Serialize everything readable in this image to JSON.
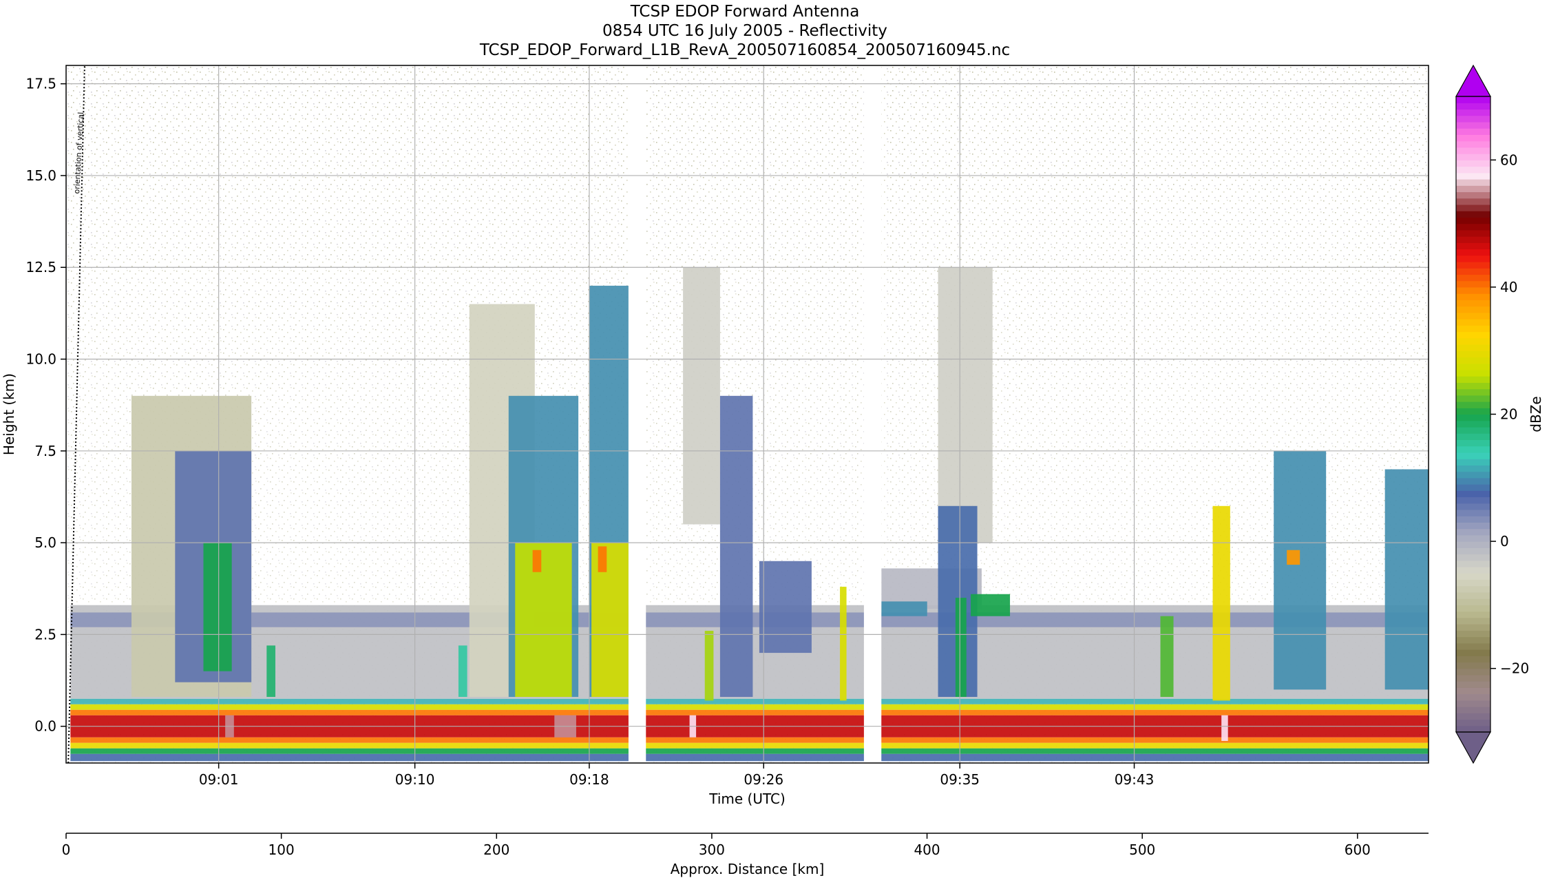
{
  "chart_data": {
    "type": "heatmap",
    "title_lines": [
      "TCSP EDOP Forward Antenna",
      "0854 UTC 16 July 2005 - Reflectivity",
      "TCSP_EDOP_Forward_L1B_RevA_200507160854_200507160945.nc"
    ],
    "ylabel": "Height (km)",
    "xlabel": "Time (UTC)",
    "x2label": "Approx. Distance [km]",
    "ylim": [
      -1.0,
      18.0
    ],
    "yticks": [
      0.0,
      2.5,
      5.0,
      7.5,
      10.0,
      12.5,
      15.0,
      17.5
    ],
    "ytick_labels": [
      "0.0",
      "2.5",
      "5.0",
      "7.5",
      "10.0",
      "12.5",
      "15.0",
      "17.5"
    ],
    "time_range_min": [
      0,
      62.5
    ],
    "time_ticks_min": [
      7,
      16,
      24,
      32,
      41,
      49
    ],
    "time_tick_labels": [
      "09:01",
      "09:10",
      "09:18",
      "09:26",
      "09:35",
      "09:43"
    ],
    "distance_range_km": [
      0,
      633
    ],
    "distance_ticks": [
      0,
      100,
      200,
      300,
      400,
      500,
      600
    ],
    "distance_tick_labels": [
      "0",
      "100",
      "200",
      "300",
      "400",
      "500",
      "600"
    ],
    "grid": true,
    "data_gaps_min": [
      [
        25.8,
        26.6
      ],
      [
        36.6,
        37.4
      ]
    ],
    "annotation": "orientation of vertical",
    "colorbar": {
      "label": "dBZe",
      "range": [
        -30,
        70
      ],
      "ticks": [
        -20,
        0,
        20,
        40,
        60
      ],
      "tick_labels": [
        "−20",
        "0",
        "20",
        "40",
        "60"
      ],
      "extend": "both",
      "colors": [
        "#6e5f88",
        "#a08a8c",
        "#837a4c",
        "#b9b98f",
        "#d7d7c8",
        "#a5a8c0",
        "#4a63aa",
        "#3ad1b9",
        "#17a44c",
        "#c8e000",
        "#ffd500",
        "#ff8f00",
        "#ee1010",
        "#720000",
        "#fce7f3",
        "#ff7ce0",
        "#b000f0"
      ]
    },
    "cells": [
      {
        "t0": 0.2,
        "t1": 62.5,
        "h0": -0.95,
        "h1": -0.75,
        "dbz": 8
      },
      {
        "t0": 0.2,
        "t1": 62.5,
        "h0": -0.75,
        "h1": -0.6,
        "dbz": 20
      },
      {
        "t0": 0.2,
        "t1": 62.5,
        "h0": -0.6,
        "h1": -0.45,
        "dbz": 30
      },
      {
        "t0": 0.2,
        "t1": 62.5,
        "h0": -0.45,
        "h1": -0.3,
        "dbz": 40
      },
      {
        "t0": 0.2,
        "t1": 62.5,
        "h0": -0.3,
        "h1": 0.3,
        "dbz": 47
      },
      {
        "t0": 0.2,
        "t1": 62.5,
        "h0": 0.3,
        "h1": 0.45,
        "dbz": 40
      },
      {
        "t0": 0.2,
        "t1": 62.5,
        "h0": 0.45,
        "h1": 0.6,
        "dbz": 28
      },
      {
        "t0": 0.2,
        "t1": 62.5,
        "h0": 0.6,
        "h1": 0.75,
        "dbz": 12
      },
      {
        "t0": 0.2,
        "t1": 62.5,
        "h0": 0.75,
        "h1": 3.3,
        "dbz": -2
      },
      {
        "t0": 0.2,
        "t1": 62.5,
        "h0": 2.7,
        "h1": 3.1,
        "dbz": 3
      },
      {
        "t0": 3.0,
        "t1": 8.5,
        "h0": 0.8,
        "h1": 9.0,
        "dbz": -8
      },
      {
        "t0": 5.0,
        "t1": 8.5,
        "h0": 1.2,
        "h1": 7.5,
        "dbz": 6
      },
      {
        "t0": 6.3,
        "t1": 7.6,
        "h0": 1.5,
        "h1": 5.0,
        "dbz": 20
      },
      {
        "t0": 18.5,
        "t1": 21.5,
        "h0": 0.8,
        "h1": 11.5,
        "dbz": -6
      },
      {
        "t0": 20.3,
        "t1": 23.5,
        "h0": 0.8,
        "h1": 9.0,
        "dbz": 10
      },
      {
        "t0": 20.6,
        "t1": 23.2,
        "h0": 0.8,
        "h1": 5.0,
        "dbz": 26
      },
      {
        "t0": 21.4,
        "t1": 21.8,
        "h0": 4.2,
        "h1": 4.8,
        "dbz": 40
      },
      {
        "t0": 24.0,
        "t1": 25.8,
        "h0": 0.8,
        "h1": 12.0,
        "dbz": 10
      },
      {
        "t0": 24.1,
        "t1": 25.8,
        "h0": 0.8,
        "h1": 5.0,
        "dbz": 28
      },
      {
        "t0": 24.4,
        "t1": 24.8,
        "h0": 4.2,
        "h1": 4.9,
        "dbz": 40
      },
      {
        "t0": 28.3,
        "t1": 30.0,
        "h0": 5.5,
        "h1": 12.5,
        "dbz": -4
      },
      {
        "t0": 30.0,
        "t1": 31.5,
        "h0": 0.8,
        "h1": 9.0,
        "dbz": 6
      },
      {
        "t0": 31.8,
        "t1": 34.2,
        "h0": 2.0,
        "h1": 4.5,
        "dbz": 6
      },
      {
        "t0": 40.0,
        "t1": 42.5,
        "h0": 5.0,
        "h1": 12.5,
        "dbz": -4
      },
      {
        "t0": 37.4,
        "t1": 42.0,
        "h0": 3.2,
        "h1": 4.3,
        "dbz": -1
      },
      {
        "t0": 37.4,
        "t1": 39.5,
        "h0": 3.0,
        "h1": 3.4,
        "dbz": 10
      },
      {
        "t0": 40.0,
        "t1": 41.8,
        "h0": 0.8,
        "h1": 6.0,
        "dbz": 8
      },
      {
        "t0": 40.8,
        "t1": 41.3,
        "h0": 0.8,
        "h1": 3.5,
        "dbz": 20
      },
      {
        "t0": 41.5,
        "t1": 43.3,
        "h0": 3.0,
        "h1": 3.6,
        "dbz": 20
      },
      {
        "t0": 52.6,
        "t1": 53.4,
        "h0": 0.7,
        "h1": 6.0,
        "dbz": 30
      },
      {
        "t0": 55.4,
        "t1": 57.8,
        "h0": 1.0,
        "h1": 7.5,
        "dbz": 10
      },
      {
        "t0": 56.0,
        "t1": 56.6,
        "h0": 4.4,
        "h1": 4.8,
        "dbz": 38
      },
      {
        "t0": 60.5,
        "t1": 62.5,
        "h0": 1.0,
        "h1": 7.0,
        "dbz": 10
      },
      {
        "t0": 9.2,
        "t1": 9.6,
        "h0": 0.8,
        "h1": 2.2,
        "dbz": 18
      },
      {
        "t0": 18.0,
        "t1": 18.4,
        "h0": 0.8,
        "h1": 2.2,
        "dbz": 15
      },
      {
        "t0": 29.3,
        "t1": 29.7,
        "h0": 0.7,
        "h1": 2.6,
        "dbz": 25
      },
      {
        "t0": 35.5,
        "t1": 35.8,
        "h0": 0.7,
        "h1": 3.8,
        "dbz": 28
      },
      {
        "t0": 50.2,
        "t1": 50.8,
        "h0": 0.8,
        "h1": 3.0,
        "dbz": 22
      },
      {
        "t0": 7.3,
        "t1": 7.7,
        "h0": -0.3,
        "h1": 0.3,
        "dbz": 55
      },
      {
        "t0": 22.4,
        "t1": 23.4,
        "h0": -0.3,
        "h1": 0.3,
        "dbz": 55
      },
      {
        "t0": 28.6,
        "t1": 28.9,
        "h0": -0.3,
        "h1": 0.3,
        "dbz": 58
      },
      {
        "t0": 53.0,
        "t1": 53.3,
        "h0": -0.4,
        "h1": 0.3,
        "dbz": 58
      }
    ]
  }
}
